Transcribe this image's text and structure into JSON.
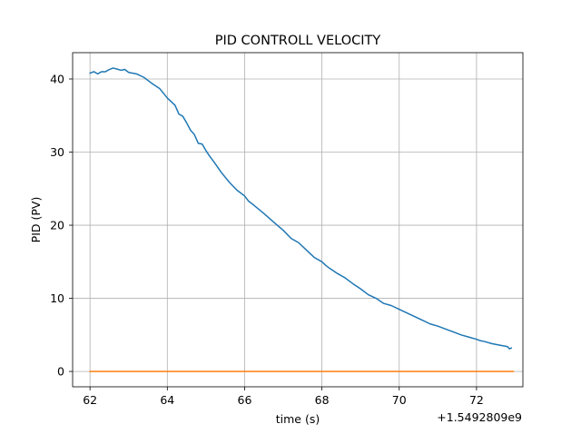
{
  "chart_data": {
    "type": "line",
    "title": "PID CONTROLL VELOCITY",
    "xlabel": "time (s)",
    "ylabel": "PID (PV)",
    "x_offset_label": "+1.5492809e9",
    "xlim": [
      61.55,
      73.2
    ],
    "ylim": [
      -2.1,
      43.6
    ],
    "x_ticks": [
      62,
      64,
      66,
      68,
      70,
      72
    ],
    "y_ticks": [
      0,
      10,
      20,
      30,
      40
    ],
    "grid": true,
    "series": [
      {
        "color": "#1f77b4",
        "x": [
          62.0,
          62.1,
          62.2,
          62.3,
          62.4,
          62.5,
          62.6,
          62.8,
          62.9,
          63.0,
          63.2,
          63.4,
          63.6,
          63.8,
          64.0,
          64.2,
          64.3,
          64.4,
          64.5,
          64.6,
          64.7,
          64.8,
          64.9,
          65.0,
          65.1,
          65.2,
          65.4,
          65.6,
          65.8,
          66.0,
          66.1,
          66.2,
          66.5,
          66.8,
          67.0,
          67.2,
          67.4,
          67.6,
          67.8,
          68.0,
          68.1,
          68.2,
          68.4,
          68.6,
          68.8,
          69.0,
          69.2,
          69.4,
          69.6,
          69.8,
          70.0,
          70.2,
          70.4,
          70.6,
          70.8,
          71.0,
          71.2,
          71.4,
          71.6,
          71.8,
          72.0,
          72.1,
          72.2,
          72.4,
          72.6,
          72.8,
          72.85,
          72.9
        ],
        "y": [
          40.8,
          41.0,
          40.7,
          41.0,
          41.0,
          41.3,
          41.5,
          41.2,
          41.3,
          40.9,
          40.7,
          40.2,
          39.4,
          38.7,
          37.4,
          36.4,
          35.2,
          34.9,
          34.0,
          33.0,
          32.4,
          31.2,
          31.1,
          30.2,
          29.4,
          28.7,
          27.2,
          25.9,
          24.8,
          24.0,
          23.3,
          22.9,
          21.6,
          20.2,
          19.3,
          18.2,
          17.6,
          16.6,
          15.6,
          15.0,
          14.5,
          14.1,
          13.4,
          12.8,
          12.0,
          11.3,
          10.5,
          10.0,
          9.3,
          9.0,
          8.5,
          8.0,
          7.5,
          7.0,
          6.5,
          6.2,
          5.8,
          5.4,
          5.0,
          4.7,
          4.4,
          4.2,
          4.1,
          3.8,
          3.6,
          3.4,
          3.1,
          3.2
        ]
      },
      {
        "color": "#ff7f0e",
        "x": [
          62.0,
          72.95
        ],
        "y": [
          0,
          0
        ]
      }
    ]
  }
}
